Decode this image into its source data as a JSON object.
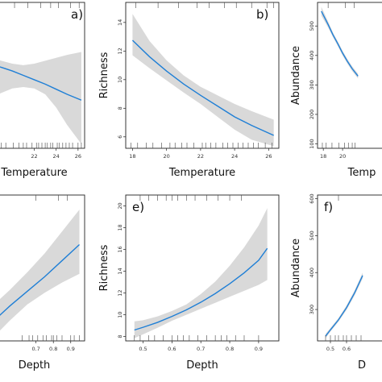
{
  "chart_data": [
    {
      "panel_label": "a)",
      "type": "line",
      "xlabel": "Temperature",
      "ylabel": "",
      "xlim": [
        17.4,
        26.6
      ],
      "ylim": [
        0,
        1
      ],
      "x_ticks": [
        22,
        24,
        26
      ],
      "y_ticks": [],
      "x": [
        18,
        19,
        20,
        21,
        22,
        23,
        24,
        25,
        26.3
      ],
      "fit": [
        0.575,
        0.555,
        0.53,
        0.5,
        0.47,
        0.44,
        0.405,
        0.37,
        0.33
      ],
      "lower": [
        0.34,
        0.38,
        0.41,
        0.42,
        0.41,
        0.37,
        0.28,
        0.16,
        0.03
      ],
      "upper": [
        0.62,
        0.6,
        0.58,
        0.57,
        0.58,
        0.6,
        0.62,
        0.64,
        0.66
      ],
      "rug_x": [
        17.8,
        18.1,
        18.5,
        19,
        19.4,
        20.1,
        20.6,
        21,
        21.3,
        21.8,
        22.2,
        22.4,
        22.7,
        23,
        23.2,
        23.5,
        23.7,
        24.1,
        24.3,
        24.6,
        24.9,
        25.2,
        25.5,
        26,
        26.3
      ],
      "rug_top": [
        18.5,
        20.2,
        21.4,
        22.6,
        23.5,
        24.2,
        25.3,
        26.1
      ]
    },
    {
      "panel_label": "b)",
      "type": "line",
      "xlabel": "Temperature",
      "ylabel": "Richness",
      "xlim": [
        17.6,
        26.6
      ],
      "ylim": [
        5.2,
        15.4
      ],
      "x_ticks": [
        18,
        20,
        22,
        24,
        26
      ],
      "y_ticks": [
        6,
        8,
        10,
        12,
        14
      ],
      "x": [
        18,
        19,
        20,
        21,
        22,
        23,
        24,
        25,
        26.3
      ],
      "fit": [
        12.75,
        11.6,
        10.6,
        9.7,
        8.9,
        8.15,
        7.4,
        6.8,
        6.1
      ],
      "lower": [
        11.7,
        10.8,
        9.95,
        9.1,
        8.3,
        7.4,
        6.5,
        5.8,
        5.35
      ],
      "upper": [
        14.6,
        12.7,
        11.35,
        10.3,
        9.5,
        8.9,
        8.3,
        7.8,
        7.2
      ],
      "rug_x": [
        17.9,
        18.3,
        18.8,
        19.2,
        19.7,
        20.2,
        20.5,
        20.9,
        21.2,
        21.6,
        22.1,
        22.3,
        22.6,
        22.9,
        23.3,
        23.6,
        23.9,
        24.2,
        24.5,
        24.8,
        25.1,
        25.4,
        25.8,
        26.2
      ],
      "rug_top": [
        18.2,
        19.5,
        20.7,
        21.8,
        22.5,
        23.4,
        24.1,
        25,
        25.9,
        26.3
      ]
    },
    {
      "panel_label": "",
      "type": "line",
      "xlabel": "Temp",
      "ylabel": "Abundance",
      "xlim": [
        17.4,
        26.6
      ],
      "ylim": [
        85,
        580
      ],
      "x_ticks": [
        18,
        20
      ],
      "y_ticks": [
        100,
        200,
        300,
        400,
        500
      ],
      "x": [
        17.8,
        18.5,
        19,
        19.5,
        20,
        20.5,
        21,
        21.6
      ],
      "fit": [
        550,
        505,
        470,
        440,
        408,
        380,
        355,
        330
      ],
      "lower": [
        535,
        495,
        462,
        432,
        400,
        372,
        347,
        322
      ],
      "upper": [
        565,
        515,
        478,
        448,
        416,
        388,
        363,
        338
      ],
      "rug_x": [
        17.9,
        18.3,
        18.9,
        19.6,
        20.2,
        20.6,
        21,
        21.3
      ],
      "rug_top": [
        18.5,
        20.3,
        21.2
      ]
    },
    {
      "panel_label": "",
      "type": "line",
      "xlabel": "Depth",
      "ylabel": "",
      "xlim": [
        0.4,
        0.98
      ],
      "ylim": [
        0,
        1
      ],
      "x_ticks": [
        0.7,
        0.8,
        0.9
      ],
      "y_ticks": [],
      "x": [
        0.45,
        0.55,
        0.65,
        0.75,
        0.85,
        0.95
      ],
      "fit": [
        0.13,
        0.24,
        0.34,
        0.44,
        0.55,
        0.66
      ],
      "lower": [
        0.02,
        0.14,
        0.25,
        0.33,
        0.4,
        0.46
      ],
      "upper": [
        0.24,
        0.35,
        0.47,
        0.6,
        0.75,
        0.9
      ],
      "rug_x": [
        0.62,
        0.66,
        0.68,
        0.71,
        0.74,
        0.76,
        0.79,
        0.8,
        0.82,
        0.85,
        0.9,
        0.92,
        0.95
      ],
      "rug_top": [
        0.7,
        0.83,
        0.88
      ]
    },
    {
      "panel_label": "e)",
      "type": "line",
      "xlabel": "Depth",
      "ylabel": "Richness",
      "xlim": [
        0.44,
        0.97
      ],
      "ylim": [
        7.6,
        21
      ],
      "x_ticks": [
        0.5,
        0.6,
        0.7,
        0.8,
        0.9
      ],
      "y_ticks": [
        8,
        10,
        12,
        14,
        16,
        18,
        20
      ],
      "x": [
        0.47,
        0.5,
        0.55,
        0.6,
        0.65,
        0.7,
        0.75,
        0.8,
        0.85,
        0.9,
        0.93
      ],
      "fit": [
        8.6,
        8.85,
        9.3,
        9.85,
        10.45,
        11.15,
        11.95,
        12.85,
        13.85,
        15.0,
        16.1
      ],
      "lower": [
        7.85,
        8.2,
        8.8,
        9.45,
        10.0,
        10.55,
        11.1,
        11.65,
        12.2,
        12.75,
        13.2
      ],
      "upper": [
        9.4,
        9.5,
        9.85,
        10.35,
        10.95,
        11.9,
        13.05,
        14.5,
        16.2,
        18.2,
        19.8
      ],
      "rug_x": [
        0.47,
        0.49,
        0.52,
        0.54,
        0.57,
        0.6,
        0.62,
        0.64,
        0.66,
        0.69,
        0.72,
        0.75,
        0.77,
        0.79,
        0.82,
        0.85,
        0.9
      ],
      "rug_top": [
        0.49,
        0.52,
        0.55,
        0.58,
        0.6,
        0.62,
        0.65,
        0.68,
        0.72,
        0.76,
        0.8,
        0.84
      ]
    },
    {
      "panel_label": "f)",
      "type": "line",
      "xlabel": "D",
      "ylabel": "Abundance",
      "xlim": [
        0.42,
        0.97
      ],
      "ylim": [
        215,
        610
      ],
      "x_ticks": [
        0.5,
        0.6
      ],
      "y_ticks": [
        300,
        400,
        500,
        600
      ],
      "x": [
        0.47,
        0.5,
        0.55,
        0.6,
        0.65,
        0.7
      ],
      "fit": [
        228,
        245,
        272,
        305,
        345,
        392
      ],
      "lower": [
        222,
        240,
        267,
        299,
        338,
        384
      ],
      "upper": [
        234,
        250,
        277,
        311,
        352,
        400
      ],
      "rug_x": [
        0.47,
        0.5,
        0.53,
        0.55,
        0.58,
        0.6,
        0.63,
        0.66,
        0.69
      ],
      "rug_top": [
        0.55
      ]
    }
  ]
}
